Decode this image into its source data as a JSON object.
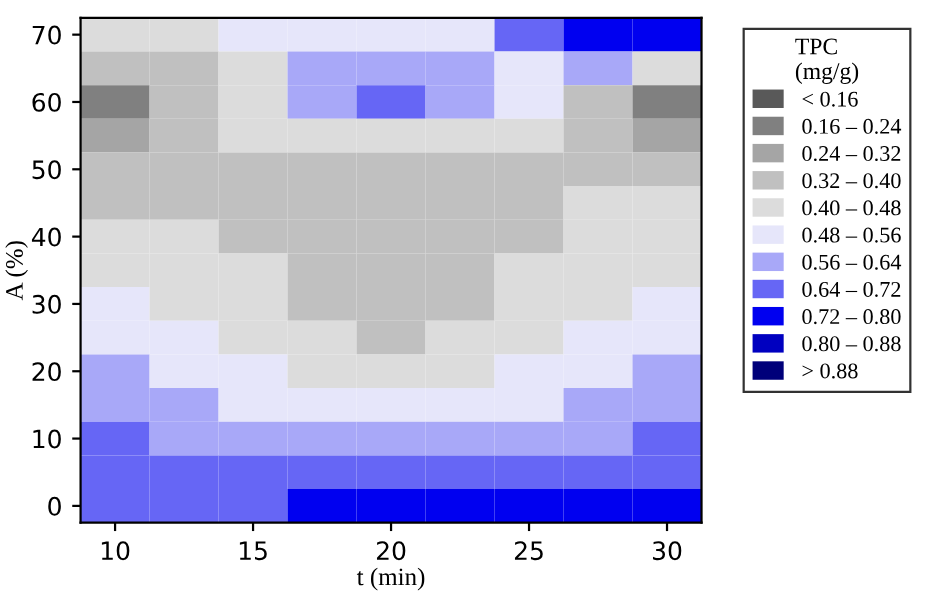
{
  "chart_data": {
    "type": "heatmap",
    "xlabel": "t (min)",
    "ylabel": "A (%)",
    "legend_title": "TPC\n(mg/g)",
    "categories": [
      "10",
      null,
      "15",
      null,
      "20",
      null,
      "25",
      null,
      "30"
    ],
    "y_categories": [
      "70",
      null,
      "60",
      null,
      "50",
      null,
      "40",
      null,
      "30",
      null,
      "20",
      null,
      "10",
      null,
      "0"
    ],
    "clim": [
      0.08,
      0.96
    ],
    "cticks": [
      {
        "value": 0.12,
        "label": "< 0.16"
      },
      {
        "value": 0.2,
        "label": "0.16 – 0.24"
      },
      {
        "value": 0.28,
        "label": "0.24 – 0.32"
      },
      {
        "value": 0.36,
        "label": "0.32 – 0.40"
      },
      {
        "value": 0.44,
        "label": "0.40 – 0.48"
      },
      {
        "value": 0.52,
        "label": "0.48 – 0.56"
      },
      {
        "value": 0.6,
        "label": "0.56 – 0.64"
      },
      {
        "value": 0.68,
        "label": "0.64 – 0.72"
      },
      {
        "value": 0.76,
        "label": "0.72 – 0.80"
      },
      {
        "value": 0.84,
        "label": "0.80 – 0.88"
      },
      {
        "value": 0.92,
        "label": "> 0.88"
      }
    ],
    "colors": [
      "#595959",
      "#808080",
      "#a5a5a5",
      "#c0c0c0",
      "#dcdcdc",
      "#e6e6fa",
      "#a8a8f8",
      "#6666f5",
      "#0000f0",
      "#0000c0",
      "#00007a"
    ],
    "cells": [
      [
        0.44,
        0.44,
        0.52,
        0.52,
        0.52,
        0.52,
        0.68,
        0.76,
        0.76
      ],
      [
        0.36,
        0.36,
        0.44,
        0.6,
        0.6,
        0.6,
        0.52,
        0.6,
        0.44
      ],
      [
        0.2,
        0.36,
        0.44,
        0.6,
        0.68,
        0.6,
        0.52,
        0.36,
        0.2
      ],
      [
        0.28,
        0.36,
        0.44,
        0.44,
        0.44,
        0.44,
        0.44,
        0.36,
        0.28
      ],
      [
        0.36,
        0.36,
        0.36,
        0.36,
        0.36,
        0.36,
        0.36,
        0.36,
        0.36
      ],
      [
        0.36,
        0.36,
        0.36,
        0.36,
        0.36,
        0.36,
        0.36,
        0.44,
        0.44
      ],
      [
        0.44,
        0.44,
        0.36,
        0.36,
        0.36,
        0.36,
        0.36,
        0.44,
        0.44
      ],
      [
        0.44,
        0.44,
        0.44,
        0.36,
        0.36,
        0.36,
        0.44,
        0.44,
        0.44
      ],
      [
        0.52,
        0.44,
        0.44,
        0.36,
        0.36,
        0.36,
        0.44,
        0.44,
        0.52
      ],
      [
        0.52,
        0.52,
        0.44,
        0.44,
        0.36,
        0.44,
        0.44,
        0.52,
        0.52
      ],
      [
        0.6,
        0.52,
        0.52,
        0.44,
        0.44,
        0.44,
        0.52,
        0.52,
        0.6
      ],
      [
        0.6,
        0.6,
        0.52,
        0.52,
        0.52,
        0.52,
        0.52,
        0.6,
        0.6
      ],
      [
        0.68,
        0.6,
        0.6,
        0.6,
        0.6,
        0.6,
        0.6,
        0.6,
        0.68
      ],
      [
        0.68,
        0.68,
        0.68,
        0.68,
        0.68,
        0.68,
        0.68,
        0.68,
        0.68
      ],
      [
        0.68,
        0.68,
        0.68,
        0.76,
        0.76,
        0.76,
        0.76,
        0.76,
        0.76
      ]
    ]
  }
}
